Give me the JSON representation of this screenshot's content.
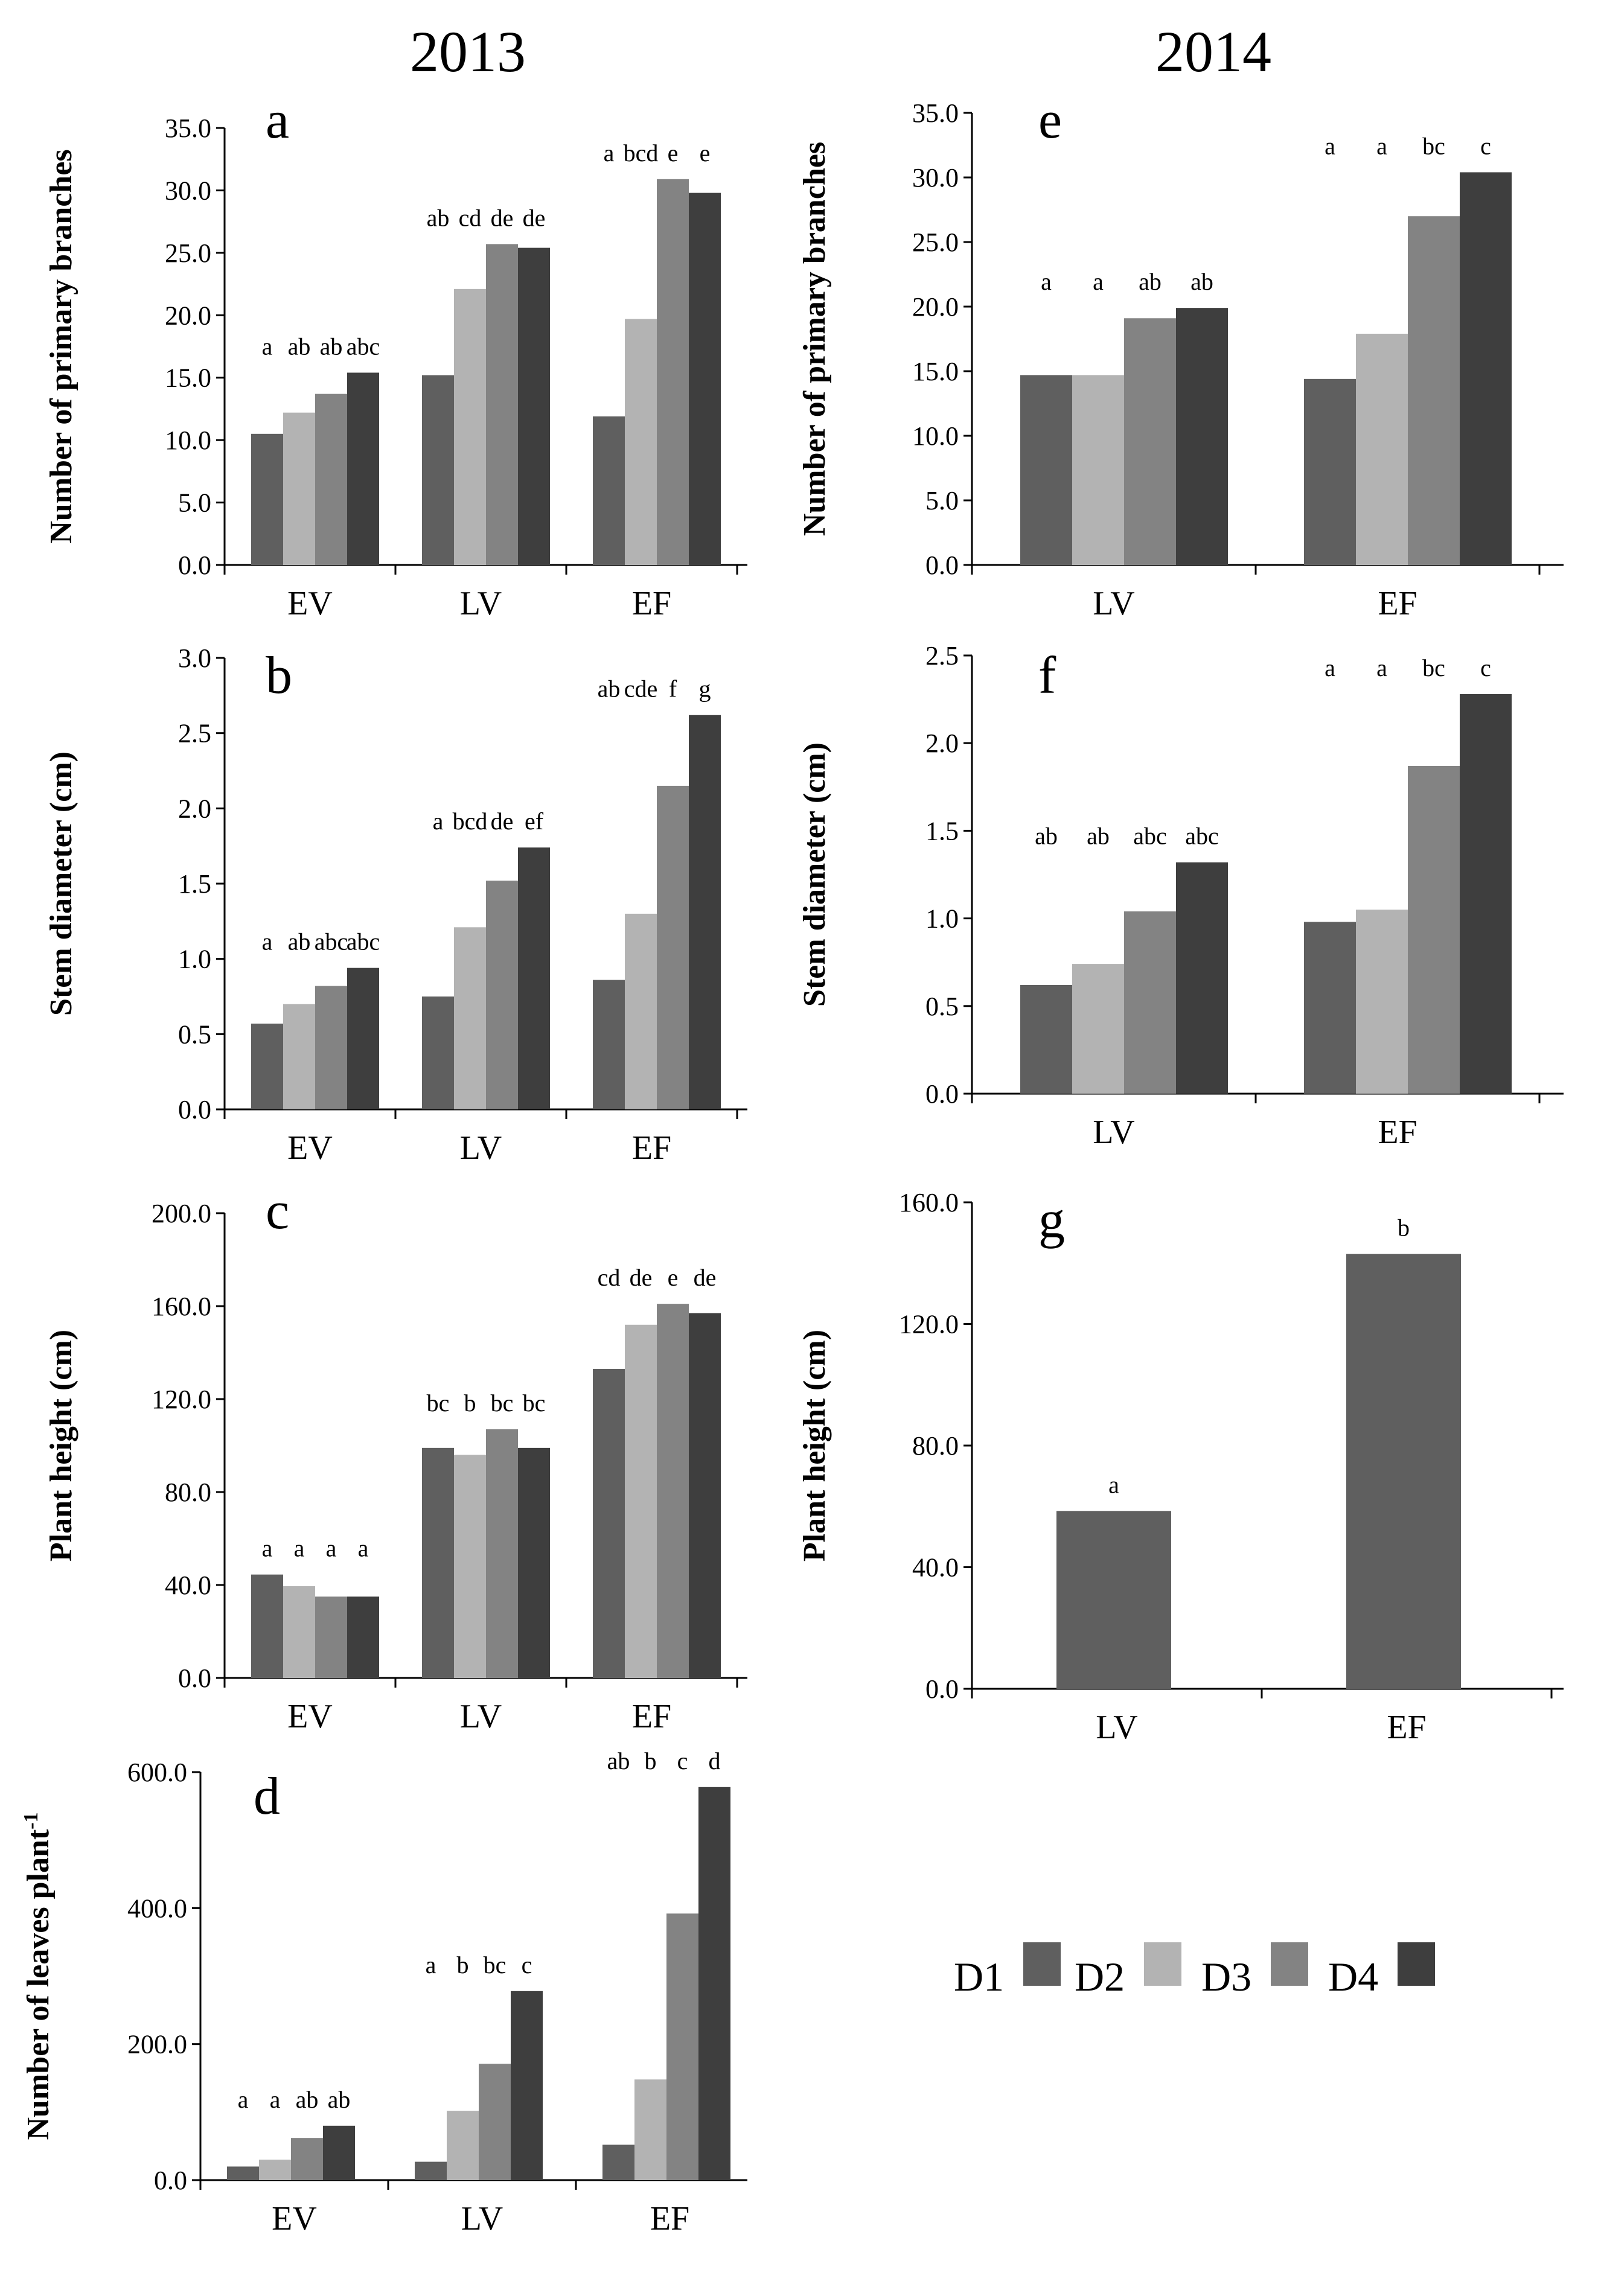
{
  "years": {
    "left": "2013",
    "right": "2014"
  },
  "colors": {
    "D1": "#5f5f5f",
    "D2": "#b3b3b3",
    "D3": "#838383",
    "D4": "#3e3e3e"
  },
  "legend": [
    "D1",
    "D2",
    "D3",
    "D4"
  ],
  "chart_data": [
    {
      "id": "a",
      "type": "bar",
      "title": "a",
      "ylabel": "Number of primary branches",
      "ylim": [
        0,
        35
      ],
      "yticks": [
        "0.0",
        "5.0",
        "10.0",
        "15.0",
        "20.0",
        "25.0",
        "30.0",
        "35.0"
      ],
      "categories": [
        "EV",
        "LV",
        "EF"
      ],
      "series": [
        {
          "name": "D1",
          "values": [
            10.5,
            15.2,
            11.9
          ]
        },
        {
          "name": "D2",
          "values": [
            12.2,
            22.1,
            19.7
          ]
        },
        {
          "name": "D3",
          "values": [
            13.7,
            25.7,
            30.9
          ]
        },
        {
          "name": "D4",
          "values": [
            15.4,
            25.4,
            29.8
          ]
        }
      ],
      "labels": [
        [
          "a",
          "ab",
          "ab",
          "abc"
        ],
        [
          "ab",
          "cd",
          "de",
          "de"
        ],
        [
          "a",
          "bcd",
          "e",
          "e"
        ]
      ]
    },
    {
      "id": "b",
      "type": "bar",
      "title": "b",
      "ylabel": "Stem diameter (cm)",
      "ylim": [
        0,
        3
      ],
      "yticks": [
        "0.0",
        "0.5",
        "1.0",
        "1.5",
        "2.0",
        "2.5",
        "3.0"
      ],
      "categories": [
        "EV",
        "LV",
        "EF"
      ],
      "series": [
        {
          "name": "D1",
          "values": [
            0.57,
            0.75,
            0.86
          ]
        },
        {
          "name": "D2",
          "values": [
            0.7,
            1.21,
            1.3
          ]
        },
        {
          "name": "D3",
          "values": [
            0.82,
            1.52,
            2.15
          ]
        },
        {
          "name": "D4",
          "values": [
            0.94,
            1.74,
            2.62
          ]
        }
      ],
      "labels": [
        [
          "a",
          "ab",
          "abc",
          "abc"
        ],
        [
          "a",
          "bcd",
          "de",
          "ef"
        ],
        [
          "ab",
          "cde",
          "f",
          "g"
        ]
      ]
    },
    {
      "id": "c",
      "type": "bar",
      "title": "c",
      "ylabel": "Plant height (cm)",
      "ylim": [
        0,
        200
      ],
      "yticks": [
        "0.0",
        "40.0",
        "80.0",
        "120.0",
        "160.0",
        "200.0"
      ],
      "categories": [
        "EV",
        "LV",
        "EF"
      ],
      "series": [
        {
          "name": "D1",
          "values": [
            44.5,
            99.0,
            133.0
          ]
        },
        {
          "name": "D2",
          "values": [
            39.5,
            96.0,
            152.0
          ]
        },
        {
          "name": "D3",
          "values": [
            35.0,
            107.0,
            161.0
          ]
        },
        {
          "name": "D4",
          "values": [
            35.0,
            99.0,
            157.0
          ]
        }
      ],
      "labels": [
        [
          "a",
          "a",
          "a",
          "a"
        ],
        [
          "bc",
          "b",
          "bc",
          "bc"
        ],
        [
          "cd",
          "de",
          "e",
          "de"
        ]
      ]
    },
    {
      "id": "d",
      "type": "bar",
      "title": "d",
      "ylabel": "Number of leaves plant",
      "ylabel_sup": "-1",
      "ylim": [
        0,
        600
      ],
      "yticks": [
        "0.0",
        "200.0",
        "400.0",
        "600.0"
      ],
      "categories": [
        "EV",
        "LV",
        "EF"
      ],
      "series": [
        {
          "name": "D1",
          "values": [
            20,
            27,
            52
          ]
        },
        {
          "name": "D2",
          "values": [
            30,
            102,
            148
          ]
        },
        {
          "name": "D3",
          "values": [
            62,
            171,
            392
          ]
        },
        {
          "name": "D4",
          "values": [
            80,
            278,
            578
          ]
        }
      ],
      "labels": [
        [
          "a",
          "a",
          "ab",
          "ab"
        ],
        [
          "a",
          "b",
          "bc",
          "c"
        ],
        [
          "ab",
          "b",
          "c",
          "d"
        ]
      ]
    },
    {
      "id": "e",
      "type": "bar",
      "title": "e",
      "ylabel": "Number of primary branches",
      "ylim": [
        0,
        35
      ],
      "yticks": [
        "0.0",
        "5.0",
        "10.0",
        "15.0",
        "20.0",
        "25.0",
        "30.0",
        "35.0"
      ],
      "categories": [
        "LV",
        "EF"
      ],
      "series": [
        {
          "name": "D1",
          "values": [
            14.7,
            14.4
          ]
        },
        {
          "name": "D2",
          "values": [
            14.7,
            17.9
          ]
        },
        {
          "name": "D3",
          "values": [
            19.1,
            27.0
          ]
        },
        {
          "name": "D4",
          "values": [
            19.9,
            30.4
          ]
        }
      ],
      "labels": [
        [
          "a",
          "a",
          "ab",
          "ab"
        ],
        [
          "a",
          "a",
          "bc",
          "c"
        ]
      ]
    },
    {
      "id": "f",
      "type": "bar",
      "title": "f",
      "ylabel": "Stem diameter (cm)",
      "ylim": [
        0,
        2.5
      ],
      "yticks": [
        "0.0",
        "0.5",
        "1.0",
        "1.5",
        "2.0",
        "2.5"
      ],
      "categories": [
        "LV",
        "EF"
      ],
      "series": [
        {
          "name": "D1",
          "values": [
            0.62,
            0.98
          ]
        },
        {
          "name": "D2",
          "values": [
            0.74,
            1.05
          ]
        },
        {
          "name": "D3",
          "values": [
            1.04,
            1.87
          ]
        },
        {
          "name": "D4",
          "values": [
            1.32,
            2.28
          ]
        }
      ],
      "labels": [
        [
          "ab",
          "ab",
          "abc",
          "abc"
        ],
        [
          "a",
          "a",
          "bc",
          "c"
        ]
      ]
    },
    {
      "id": "g",
      "type": "bar",
      "title": "g",
      "ylabel": "Plant height (cm)",
      "ylim": [
        0,
        160
      ],
      "yticks": [
        "0.0",
        "40.0",
        "80.0",
        "120.0",
        "160.0"
      ],
      "categories": [
        "LV",
        "EF"
      ],
      "series": [
        {
          "name": "D1",
          "values": [
            58.5,
            143.0
          ]
        }
      ],
      "labels": [
        [
          "a"
        ],
        [
          "b"
        ]
      ]
    }
  ]
}
